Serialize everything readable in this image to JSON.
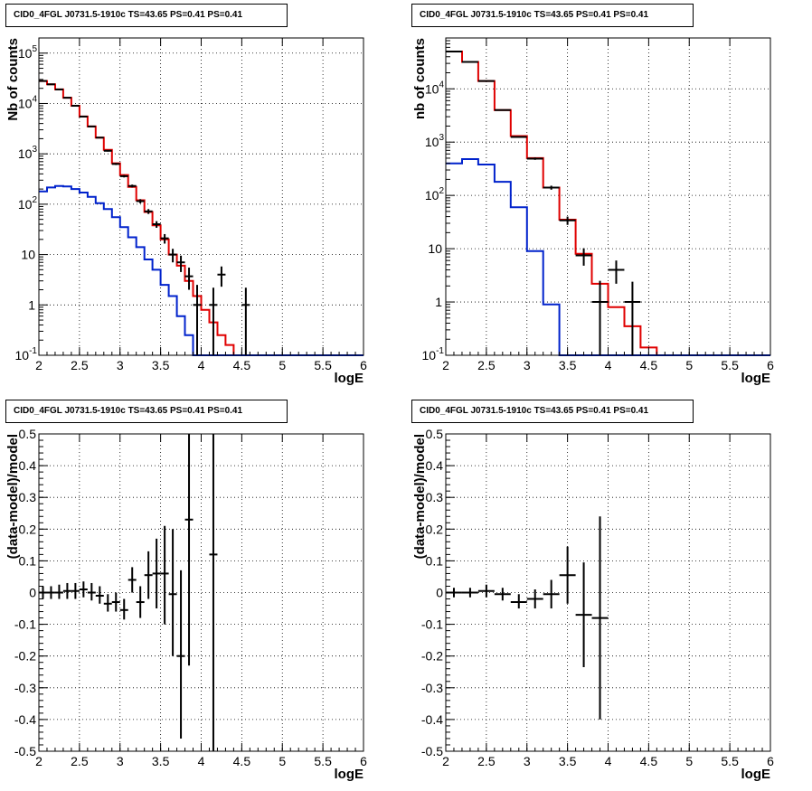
{
  "colors": {
    "data": "#000000",
    "model_total": "#e00000",
    "model_component": "#0022cc",
    "grid": "#000000"
  },
  "chart_data": [
    {
      "type": "line",
      "title": "CID0_4FGL J0731.5-1910c TS=43.65 PS=0.41 PS=0.41",
      "xlabel": "logE",
      "ylabel": "Nb of counts",
      "xlim": [
        2,
        6
      ],
      "ylim": [
        0.1,
        200000
      ],
      "yscale": "log",
      "grid": true,
      "x_ticks": [
        "2",
        "2.5",
        "3",
        "3.5",
        "4",
        "4.5",
        "5",
        "5.5",
        "6"
      ],
      "y_ticks": [
        {
          "v": 0.1,
          "b": "10",
          "e": "-1"
        },
        {
          "v": 1,
          "b": "1",
          "e": ""
        },
        {
          "v": 10,
          "b": "10",
          "e": ""
        },
        {
          "v": 100,
          "b": "10",
          "e": "2"
        },
        {
          "v": 1000,
          "b": "10",
          "e": "3"
        },
        {
          "v": 10000,
          "b": "10",
          "e": "4"
        },
        {
          "v": 100000,
          "b": "10",
          "e": "5"
        }
      ],
      "bin_edges": [
        2.0,
        2.1,
        2.2,
        2.3,
        2.4,
        2.5,
        2.6,
        2.7,
        2.8,
        2.9,
        3.0,
        3.1,
        3.2,
        3.3,
        3.4,
        3.5,
        3.6,
        3.7,
        3.8,
        3.9,
        4.0,
        4.1,
        4.2,
        4.3,
        4.4,
        4.5,
        4.6,
        4.7,
        4.8,
        4.9,
        5.0,
        5.1,
        5.2,
        5.3,
        5.4,
        5.5,
        5.6,
        5.7,
        5.8,
        5.9,
        6.0
      ],
      "series": [
        {
          "kind": "step",
          "color": "#e00000",
          "values": [
            28000,
            24000,
            19000,
            13000,
            9000,
            5500,
            3500,
            2100,
            1200,
            650,
            380,
            220,
            120,
            70,
            38,
            20,
            10,
            6,
            3,
            1.5,
            0.8,
            0.45,
            0.25,
            0.16,
            0.1,
            0.1,
            0.1,
            0.1,
            0.1,
            0.1,
            0.1,
            0.1,
            0.1,
            0.1,
            0.1,
            0.1,
            0.1,
            0.1,
            0.1,
            0.1
          ]
        },
        {
          "kind": "step",
          "color": "#0022cc",
          "values": [
            180,
            215,
            230,
            225,
            200,
            170,
            140,
            105,
            80,
            55,
            35,
            22,
            14,
            8,
            5,
            2.5,
            1.5,
            0.6,
            0.25,
            0.1,
            0.1,
            0.1,
            0.1,
            0.1,
            0.1,
            0.1,
            0.1,
            0.1,
            0.1,
            0.1,
            0.1,
            0.1,
            0.1,
            0.1,
            0.1,
            0.1,
            0.1,
            0.1,
            0.1,
            0.1
          ]
        },
        {
          "kind": "points",
          "color": "#000000",
          "points": [
            {
              "x": 2.05,
              "y": 28000,
              "lo": 27800,
              "hi": 28200
            },
            {
              "x": 2.15,
              "y": 24000,
              "lo": 23800,
              "hi": 24200
            },
            {
              "x": 2.25,
              "y": 19000,
              "lo": 18800,
              "hi": 19200
            },
            {
              "x": 2.35,
              "y": 13000,
              "lo": 12850,
              "hi": 13150
            },
            {
              "x": 2.45,
              "y": 9000,
              "lo": 8850,
              "hi": 9150
            },
            {
              "x": 2.55,
              "y": 5500,
              "lo": 5400,
              "hi": 5600
            },
            {
              "x": 2.65,
              "y": 3500,
              "lo": 3420,
              "hi": 3580
            },
            {
              "x": 2.75,
              "y": 2100,
              "lo": 2050,
              "hi": 2150
            },
            {
              "x": 2.85,
              "y": 1150,
              "lo": 1110,
              "hi": 1190
            },
            {
              "x": 2.95,
              "y": 630,
              "lo": 600,
              "hi": 660
            },
            {
              "x": 3.05,
              "y": 360,
              "lo": 340,
              "hi": 380
            },
            {
              "x": 3.15,
              "y": 230,
              "lo": 215,
              "hi": 245
            },
            {
              "x": 3.25,
              "y": 115,
              "lo": 104,
              "hi": 126
            },
            {
              "x": 3.35,
              "y": 72,
              "lo": 64,
              "hi": 80
            },
            {
              "x": 3.45,
              "y": 40,
              "lo": 34,
              "hi": 46
            },
            {
              "x": 3.55,
              "y": 21,
              "lo": 16.5,
              "hi": 25.5
            },
            {
              "x": 3.65,
              "y": 10,
              "lo": 7,
              "hi": 13
            },
            {
              "x": 3.75,
              "y": 7,
              "lo": 4.5,
              "hi": 9.5
            },
            {
              "x": 3.85,
              "y": 3.7,
              "lo": 2,
              "hi": 5.5
            },
            {
              "x": 3.95,
              "y": 1,
              "lo": 0.1,
              "hi": 2.5
            },
            {
              "x": 4.15,
              "y": 1,
              "lo": 0.1,
              "hi": 2.2
            },
            {
              "x": 4.25,
              "y": 4,
              "lo": 2.3,
              "hi": 5.8
            },
            {
              "x": 4.55,
              "y": 1,
              "lo": 0.1,
              "hi": 2.2
            }
          ]
        }
      ]
    },
    {
      "type": "line",
      "title": "CID0_4FGL J0731.5-1910c TS=43.65 PS=0.41 PS=0.41",
      "xlabel": "logE",
      "ylabel": "nb of counts",
      "xlim": [
        2,
        6
      ],
      "ylim": [
        0.1,
        90000
      ],
      "yscale": "log",
      "grid": true,
      "x_ticks": [
        "2",
        "2.5",
        "3",
        "3.5",
        "4",
        "4.5",
        "5",
        "5.5",
        "6"
      ],
      "y_ticks": [
        {
          "v": 0.1,
          "b": "10",
          "e": "-1"
        },
        {
          "v": 1,
          "b": "1",
          "e": ""
        },
        {
          "v": 10,
          "b": "10",
          "e": ""
        },
        {
          "v": 100,
          "b": "10",
          "e": "2"
        },
        {
          "v": 1000,
          "b": "10",
          "e": "3"
        },
        {
          "v": 10000,
          "b": "10",
          "e": "4"
        }
      ],
      "bin_edges": [
        2.0,
        2.2,
        2.4,
        2.6,
        2.8,
        3.0,
        3.2,
        3.4,
        3.6,
        3.8,
        4.0,
        4.2,
        4.4,
        4.6,
        4.8,
        5.0,
        5.2,
        5.4,
        5.6,
        5.8,
        6.0
      ],
      "series": [
        {
          "kind": "step",
          "color": "#e00000",
          "values": [
            50000,
            32000,
            14000,
            4000,
            1300,
            500,
            140,
            35,
            8,
            2.2,
            0.8,
            0.35,
            0.14,
            0.1,
            0.1,
            0.1,
            0.1,
            0.1,
            0.1,
            0.1
          ]
        },
        {
          "kind": "step",
          "color": "#0022cc",
          "values": [
            400,
            480,
            380,
            180,
            60,
            9,
            0.9,
            0.1,
            0.1,
            0.1,
            0.1,
            0.1,
            0.1,
            0.1,
            0.1,
            0.1,
            0.1,
            0.1,
            0.1,
            0.1
          ]
        },
        {
          "kind": "points",
          "color": "#000000",
          "points": [
            {
              "x": 2.1,
              "y": 50000,
              "lo": 49700,
              "hi": 50300
            },
            {
              "x": 2.3,
              "y": 32000,
              "lo": 31700,
              "hi": 32300
            },
            {
              "x": 2.5,
              "y": 14000,
              "lo": 13850,
              "hi": 14150
            },
            {
              "x": 2.7,
              "y": 4000,
              "lo": 3930,
              "hi": 4070
            },
            {
              "x": 2.9,
              "y": 1250,
              "lo": 1210,
              "hi": 1290
            },
            {
              "x": 3.1,
              "y": 490,
              "lo": 465,
              "hi": 515
            },
            {
              "x": 3.3,
              "y": 140,
              "lo": 128,
              "hi": 152
            },
            {
              "x": 3.5,
              "y": 34,
              "lo": 28,
              "hi": 40
            },
            {
              "x": 3.7,
              "y": 7.5,
              "lo": 4.8,
              "hi": 10.2
            },
            {
              "x": 3.9,
              "y": 1,
              "lo": 0.1,
              "hi": 2.5
            },
            {
              "x": 4.1,
              "y": 4,
              "lo": 2.2,
              "hi": 6
            },
            {
              "x": 4.3,
              "y": 1,
              "lo": 0.1,
              "hi": 2.4
            }
          ]
        }
      ]
    },
    {
      "type": "scatter",
      "title": "CID0_4FGL J0731.5-1910c TS=43.65 PS=0.41 PS=0.41",
      "xlabel": "logE",
      "ylabel": "(data-model)/model",
      "xlim": [
        2,
        6
      ],
      "ylim": [
        -0.5,
        0.5
      ],
      "yscale": "linear",
      "grid": true,
      "x_ticks": [
        "2",
        "2.5",
        "3",
        "3.5",
        "4",
        "4.5",
        "5",
        "5.5",
        "6"
      ],
      "y_ticks": [
        "-0.5",
        "-0.4",
        "-0.3",
        "-0.2",
        "-0.1",
        "0",
        "0.1",
        "0.2",
        "0.3",
        "0.4",
        "0.5"
      ],
      "series": [
        {
          "kind": "points",
          "color": "#000000",
          "xerr": 0.05,
          "points": [
            {
              "x": 2.05,
              "y": 0.0,
              "lo": -0.02,
              "hi": 0.02
            },
            {
              "x": 2.15,
              "y": 0.0,
              "lo": -0.02,
              "hi": 0.02
            },
            {
              "x": 2.25,
              "y": 0.0,
              "lo": -0.02,
              "hi": 0.025
            },
            {
              "x": 2.35,
              "y": 0.005,
              "lo": -0.02,
              "hi": 0.03
            },
            {
              "x": 2.45,
              "y": 0.005,
              "lo": -0.02,
              "hi": 0.03
            },
            {
              "x": 2.55,
              "y": 0.01,
              "lo": -0.015,
              "hi": 0.035
            },
            {
              "x": 2.65,
              "y": 0.0,
              "lo": -0.025,
              "hi": 0.03
            },
            {
              "x": 2.75,
              "y": -0.01,
              "lo": -0.035,
              "hi": 0.02
            },
            {
              "x": 2.85,
              "y": -0.035,
              "lo": -0.06,
              "hi": -0.005
            },
            {
              "x": 2.95,
              "y": -0.03,
              "lo": -0.06,
              "hi": 0.0
            },
            {
              "x": 3.05,
              "y": -0.055,
              "lo": -0.085,
              "hi": -0.02
            },
            {
              "x": 3.15,
              "y": 0.04,
              "lo": 0.0,
              "hi": 0.08
            },
            {
              "x": 3.25,
              "y": -0.03,
              "lo": -0.08,
              "hi": 0.02
            },
            {
              "x": 3.35,
              "y": 0.055,
              "lo": -0.02,
              "hi": 0.13
            },
            {
              "x": 3.45,
              "y": 0.06,
              "lo": -0.05,
              "hi": 0.17
            },
            {
              "x": 3.55,
              "y": 0.06,
              "lo": -0.1,
              "hi": 0.21
            },
            {
              "x": 3.65,
              "y": -0.005,
              "lo": -0.2,
              "hi": 0.2
            },
            {
              "x": 3.75,
              "y": -0.2,
              "lo": -0.46,
              "hi": 0.07
            },
            {
              "x": 3.85,
              "y": 0.23,
              "lo": -0.23,
              "hi": 0.5
            },
            {
              "x": 4.15,
              "y": 0.12,
              "lo": -0.5,
              "hi": 0.5
            }
          ]
        }
      ]
    },
    {
      "type": "scatter",
      "title": "CID0_4FGL J0731.5-1910c TS=43.65 PS=0.41 PS=0.41",
      "xlabel": "logE",
      "ylabel": "(data-model)/model",
      "xlim": [
        2,
        6
      ],
      "ylim": [
        -0.5,
        0.5
      ],
      "yscale": "linear",
      "grid": true,
      "x_ticks": [
        "2",
        "2.5",
        "3",
        "3.5",
        "4",
        "4.5",
        "5",
        "5.5",
        "6"
      ],
      "y_ticks": [
        "-0.5",
        "-0.4",
        "-0.3",
        "-0.2",
        "-0.1",
        "0",
        "0.1",
        "0.2",
        "0.3",
        "0.4",
        "0.5"
      ],
      "series": [
        {
          "kind": "points",
          "color": "#000000",
          "xerr": 0.1,
          "points": [
            {
              "x": 2.1,
              "y": 0.0,
              "lo": -0.015,
              "hi": 0.015
            },
            {
              "x": 2.3,
              "y": 0.0,
              "lo": -0.015,
              "hi": 0.015
            },
            {
              "x": 2.5,
              "y": 0.005,
              "lo": -0.015,
              "hi": 0.025
            },
            {
              "x": 2.7,
              "y": -0.005,
              "lo": -0.025,
              "hi": 0.015
            },
            {
              "x": 2.9,
              "y": -0.03,
              "lo": -0.05,
              "hi": -0.005
            },
            {
              "x": 3.1,
              "y": -0.02,
              "lo": -0.05,
              "hi": 0.01
            },
            {
              "x": 3.3,
              "y": -0.005,
              "lo": -0.05,
              "hi": 0.04
            },
            {
              "x": 3.5,
              "y": 0.055,
              "lo": -0.035,
              "hi": 0.145
            },
            {
              "x": 3.7,
              "y": -0.07,
              "lo": -0.235,
              "hi": 0.095
            },
            {
              "x": 3.9,
              "y": -0.08,
              "lo": -0.4,
              "hi": 0.24
            }
          ]
        }
      ]
    }
  ]
}
